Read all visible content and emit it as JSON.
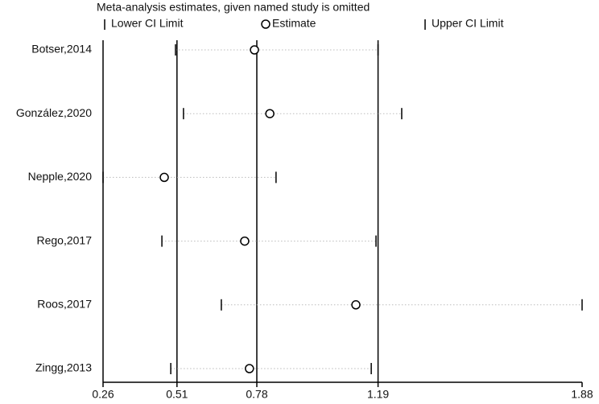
{
  "chart_data": {
    "type": "dot_interval",
    "title": "Meta-analysis estimates, given named study is omitted",
    "categories": [
      "Botser,2014",
      "González,2020",
      "Nepple,2020",
      "Rego,2017",
      "Roos,2017",
      "Zingg,2013"
    ],
    "series": [
      {
        "name": "Lower CI Limit",
        "color": "#000000",
        "values": [
          0.505,
          0.532,
          0.26,
          0.459,
          0.66,
          0.489
        ]
      },
      {
        "name": "Estimate",
        "color": "#000000",
        "values": [
          0.772,
          0.824,
          0.467,
          0.739,
          1.115,
          0.755
        ]
      },
      {
        "name": "Upper CI Limit",
        "color": "#000000",
        "values": [
          1.19,
          1.27,
          0.845,
          1.183,
          1.88,
          1.167
        ]
      }
    ],
    "reference_lines": [
      0.51,
      0.78,
      1.19
    ],
    "xlim": [
      0.26,
      1.88
    ],
    "xticks": [
      0.26,
      0.51,
      0.78,
      1.19,
      1.88
    ]
  }
}
